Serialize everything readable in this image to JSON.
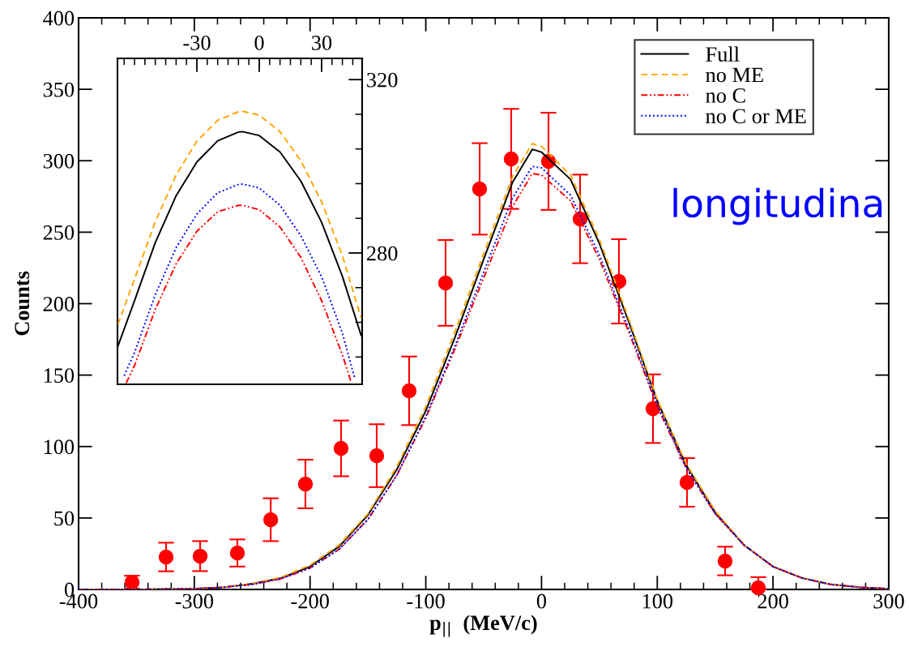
{
  "chart_data": [
    {
      "type": "line",
      "xlabel": "p$_{||}$  (MeV/c)",
      "ylabel": "Counts",
      "xlim": [
        -400,
        300
      ],
      "xticks": [
        -400,
        -300,
        -200,
        -100,
        0,
        100,
        200,
        300
      ],
      "ylim": [
        0,
        400
      ],
      "yticks": [
        0,
        50,
        100,
        150,
        200,
        250,
        300,
        350,
        400
      ],
      "grid": false,
      "legend": "top right",
      "annotations": [
        "longitudina"
      ],
      "x": [
        -400,
        -350,
        -300,
        -275,
        -250,
        -225,
        -200,
        -175,
        -150,
        -125,
        -100,
        -75,
        -50,
        -25,
        -8,
        0,
        25,
        50,
        75,
        100,
        125,
        150,
        175,
        200,
        225,
        250,
        275,
        300
      ],
      "series": [
        {
          "type": "scatter",
          "color": "#ff0000",
          "marker": "circle",
          "x": [
            -353.8,
            -324.4,
            -295,
            -262.8,
            -234,
            -204,
            -173.2,
            -142.4,
            -114.4,
            -82.9,
            -53.5,
            -26.2,
            6,
            33.3,
            66.9,
            96.3,
            125.7,
            158.6,
            187.3
          ],
          "values": [
            5.1,
            22.7,
            23.3,
            25.5,
            48.8,
            73.8,
            98.7,
            93.6,
            139,
            214.5,
            280.3,
            301.3,
            299.6,
            259.3,
            215.6,
            126.5,
            74.9,
            19.9,
            1.1
          ],
          "errors": [
            4.5,
            10,
            10.5,
            9.5,
            15,
            17,
            19.5,
            22,
            24,
            30,
            32,
            35,
            34,
            31,
            29.5,
            24,
            17,
            10,
            [
              1.1,
              7.5
            ]
          ]
        },
        {
          "name": "Full",
          "color": "#000000",
          "line_style": "solid",
          "values": [
            0,
            0,
            0.5,
            1.5,
            4,
            8,
            16,
            30,
            52,
            84,
            125,
            176,
            231,
            285,
            308,
            306,
            287,
            242,
            188,
            132,
            87,
            54,
            31,
            16,
            8,
            3.5,
            1.5,
            0.5
          ]
        },
        {
          "name": "no ME",
          "color": "#ffa500",
          "line_style": "dashed",
          "values": [
            0,
            0,
            0.5,
            1.5,
            4,
            8.5,
            17,
            31,
            53,
            86,
            128,
            180,
            235,
            289,
            312,
            310,
            290,
            245,
            190,
            133,
            88,
            55,
            31,
            16,
            8,
            3.5,
            1.5,
            0.5
          ]
        },
        {
          "name": "no C",
          "color": "#ff0000",
          "line_style": "dashdot",
          "values": [
            0,
            0,
            0.5,
            1.5,
            3.5,
            7.5,
            15,
            28,
            49,
            80,
            120,
            168,
            218,
            268,
            291,
            290,
            272,
            231,
            181,
            128,
            85,
            53,
            31,
            16,
            8,
            3.5,
            1.5,
            0.5
          ]
        },
        {
          "name": "no C or ME",
          "color": "#0000ff",
          "line_style": "dotted",
          "values": [
            0,
            0,
            0.5,
            1.5,
            3.5,
            7.5,
            15,
            28,
            49,
            80,
            121,
            170,
            222,
            274,
            296,
            295,
            276,
            234,
            183,
            129,
            85,
            53,
            31,
            16,
            8,
            3.5,
            1.5,
            0.5
          ]
        }
      ]
    },
    {
      "type": "line",
      "xlim": [
        -68.2,
        49.5
      ],
      "xticks": [
        -30,
        0,
        30
      ],
      "ylim": [
        249.7,
        324.9
      ],
      "yticks": [
        280,
        320
      ],
      "grid": false,
      "legend": false,
      "series": [
        {
          "color": "#000000",
          "line_style": "solid",
          "x": [
            -68,
            -60,
            -50,
            -40,
            -30,
            -20,
            -10,
            -8,
            0,
            10,
            20,
            30,
            40,
            49
          ],
          "values": [
            258.5,
            269,
            282.4,
            293.2,
            301,
            305.9,
            307.9,
            308,
            307.1,
            303.3,
            296.6,
            287.1,
            274.6,
            261
          ]
        },
        {
          "color": "#ffa500",
          "line_style": "dashed",
          "x": [
            -68,
            -60,
            -50,
            -40,
            -30,
            -20,
            -10,
            -8,
            0,
            10,
            20,
            30,
            40,
            49
          ],
          "values": [
            263.5,
            274,
            287.2,
            298,
            305.8,
            310.6,
            312.6,
            312.7,
            311.8,
            308,
            301.3,
            291.8,
            279.4,
            265
          ]
        },
        {
          "color": "#ff0000",
          "line_style": "dashdot",
          "x": [
            -64,
            -60,
            -50,
            -40,
            -30,
            -20,
            -10,
            -8,
            0,
            10,
            20,
            30,
            40,
            44
          ],
          "values": [
            250,
            254,
            267,
            277.5,
            285,
            289.5,
            291,
            291,
            290,
            286,
            279,
            269,
            256.5,
            250.5
          ]
        },
        {
          "color": "#0000ff",
          "line_style": "dotted",
          "x": [
            -65,
            -60,
            -50,
            -40,
            -30,
            -20,
            -10,
            -8,
            0,
            10,
            20,
            30,
            40,
            46
          ],
          "values": [
            251.7,
            257,
            270.4,
            281.2,
            289,
            293.9,
            295.8,
            295.9,
            295,
            291,
            284,
            274.5,
            261.5,
            251
          ]
        }
      ]
    }
  ]
}
